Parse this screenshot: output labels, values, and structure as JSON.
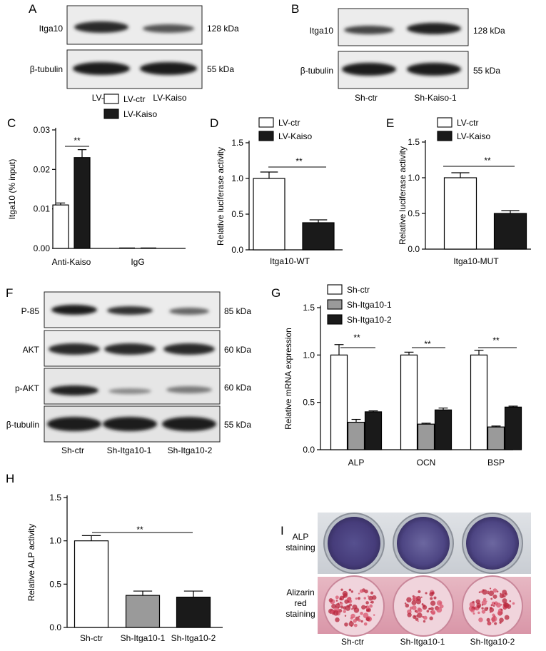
{
  "figure": {
    "panel_letters": [
      "A",
      "B",
      "C",
      "D",
      "E",
      "F",
      "G",
      "H",
      "I"
    ]
  },
  "blot_a": {
    "rows": [
      {
        "label": "Itga10",
        "size": "128 kDa"
      },
      {
        "label": "β-tubulin",
        "size": "55 kDa"
      }
    ],
    "lanes": [
      "LV-ctr",
      "LV-Kaiso"
    ]
  },
  "blot_b": {
    "rows": [
      {
        "label": "Itga10",
        "size": "128 kDa"
      },
      {
        "label": "β-tubulin",
        "size": "55 kDa"
      }
    ],
    "lanes": [
      "Sh-ctr",
      "Sh-Kaiso-1"
    ]
  },
  "blot_f": {
    "rows": [
      {
        "label": "P-85",
        "size": "85 kDa"
      },
      {
        "label": "AKT",
        "size": "60 kDa"
      },
      {
        "label": "p-AKT",
        "size": "60 kDa"
      },
      {
        "label": "β-tubulin",
        "size": "55 kDa"
      }
    ],
    "lanes": [
      "Sh-ctr",
      "Sh-Itga10-1",
      "Sh-Itga10-2"
    ]
  },
  "staining_i": {
    "rows": [
      {
        "label_lines": [
          "ALP",
          "staining"
        ]
      },
      {
        "label_lines": [
          "Alizarin",
          "red",
          "staining"
        ]
      }
    ],
    "columns": [
      "Sh-ctr",
      "Sh-Itga10-1",
      "Sh-Itga10-2"
    ]
  },
  "colors": {
    "white_bar": "#ffffff",
    "black_bar": "#1a1a1a",
    "gray_bar": "#9a9a9a",
    "alp_well": "#4b4280",
    "alizarin_bg": "#eab0c0",
    "alizarin_spot": "#b8283e"
  },
  "chart_data": [
    {
      "panel": "C",
      "type": "bar",
      "categories": [
        "Anti-Kaiso",
        "IgG"
      ],
      "series": [
        {
          "name": "LV-ctr",
          "values": [
            0.011,
            0.0
          ],
          "errors": [
            0.0005,
            0.0
          ]
        },
        {
          "name": "LV-Kaiso",
          "values": [
            0.023,
            0.0
          ],
          "errors": [
            0.002,
            0.0
          ]
        }
      ],
      "ylabel": "Itga10 (% input)",
      "ylim": [
        0,
        0.03
      ],
      "yticks": [
        "0.00",
        "0.01",
        "0.02",
        "0.03"
      ],
      "significance": [
        "**"
      ],
      "legend": "top-right"
    },
    {
      "panel": "D",
      "type": "bar",
      "categories": [
        "Itga10-WT"
      ],
      "series": [
        {
          "name": "LV-ctr",
          "values": [
            1.0
          ],
          "errors": [
            0.09
          ]
        },
        {
          "name": "LV-Kaiso",
          "values": [
            0.38
          ],
          "errors": [
            0.04
          ]
        }
      ],
      "ylabel": "Relative luciferase activity",
      "ylim": [
        0,
        1.5
      ],
      "yticks": [
        "0.0",
        "0.5",
        "1.0",
        "1.5"
      ],
      "significance": [
        "**"
      ],
      "legend": "top"
    },
    {
      "panel": "E",
      "type": "bar",
      "categories": [
        "Itga10-MUT"
      ],
      "series": [
        {
          "name": "LV-ctr",
          "values": [
            1.0
          ],
          "errors": [
            0.07
          ]
        },
        {
          "name": "LV-Kaiso",
          "values": [
            0.5
          ],
          "errors": [
            0.04
          ]
        }
      ],
      "ylabel": "Relative luciferase activity",
      "ylim": [
        0,
        1.5
      ],
      "yticks": [
        "0.0",
        "0.5",
        "1.0",
        "1.5"
      ],
      "significance": [
        "**"
      ],
      "legend": "top"
    },
    {
      "panel": "G",
      "type": "bar",
      "categories": [
        "ALP",
        "OCN",
        "BSP"
      ],
      "series": [
        {
          "name": "Sh-ctr",
          "values": [
            1.0,
            1.0,
            1.0
          ],
          "errors": [
            0.11,
            0.03,
            0.05
          ]
        },
        {
          "name": "Sh-Itga10-1",
          "values": [
            0.29,
            0.27,
            0.24
          ],
          "errors": [
            0.03,
            0.01,
            0.01
          ]
        },
        {
          "name": "Sh-Itga10-2",
          "values": [
            0.4,
            0.42,
            0.45
          ],
          "errors": [
            0.01,
            0.02,
            0.01
          ]
        }
      ],
      "ylabel": "Relative mRNA expression",
      "ylim": [
        0,
        1.5
      ],
      "yticks": [
        "0.0",
        "0.5",
        "1.0",
        "1.5"
      ],
      "significance": [
        "**",
        "**",
        "**"
      ],
      "legend": "top"
    },
    {
      "panel": "H",
      "type": "bar",
      "categories": [
        "Sh-ctr",
        "Sh-Itga10-1",
        "Sh-Itga10-2"
      ],
      "series": [
        {
          "values": [
            1.0,
            0.37,
            0.35
          ],
          "errors": [
            0.06,
            0.05,
            0.07
          ]
        }
      ],
      "ylabel": "Relative ALP activity",
      "ylim": [
        0,
        1.5
      ],
      "yticks": [
        "0.0",
        "0.5",
        "1.0",
        "1.5"
      ],
      "significance": [
        "**"
      ]
    }
  ]
}
